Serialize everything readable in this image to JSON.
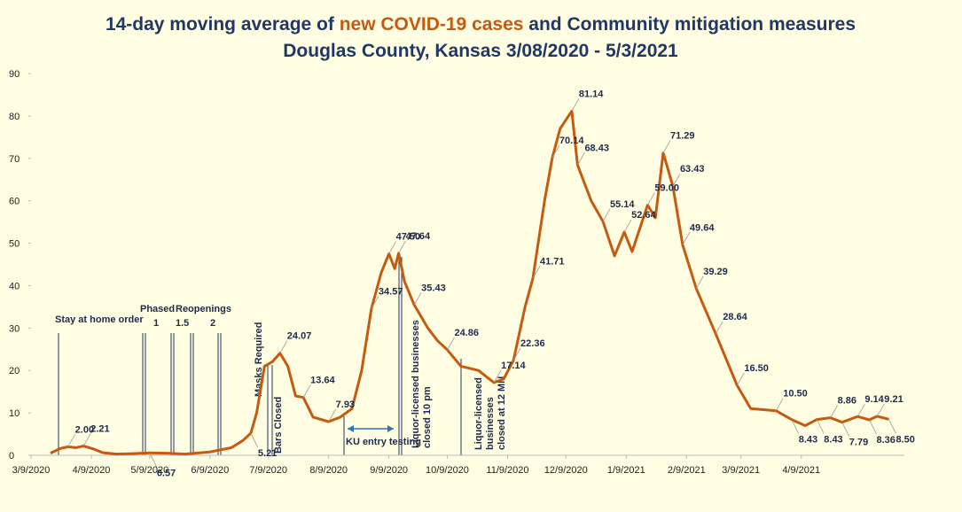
{
  "chart_data": {
    "type": "line",
    "title": [
      "14-day moving average of ",
      "new COVID-19 cases",
      " and Community mitigation measures"
    ],
    "subtitle": "Douglas County, Kansas 3/08/2020 - 5/3/2021",
    "color": "#c55a11",
    "xlim": [
      "2020-03-09",
      "2021-06-01"
    ],
    "xticks": [
      {
        "value": "2020-03-09",
        "label": "3/9/2020"
      },
      {
        "value": "2020-04-09",
        "label": "4/9/2020"
      },
      {
        "value": "2020-05-09",
        "label": "5/9/2020"
      },
      {
        "value": "2020-06-09",
        "label": "6/9/2020"
      },
      {
        "value": "2020-07-09",
        "label": "7/9/2020"
      },
      {
        "value": "2020-08-09",
        "label": "8/9/2020"
      },
      {
        "value": "2020-09-09",
        "label": "9/9/2020"
      },
      {
        "value": "2020-10-09",
        "label": "10/9/2020"
      },
      {
        "value": "2020-11-09",
        "label": "11/9/2020"
      },
      {
        "value": "2020-12-09",
        "label": "12/9/2020"
      },
      {
        "value": "2021-01-09",
        "label": "1/9/2021"
      },
      {
        "value": "2021-02-09",
        "label": "2/9/2021"
      },
      {
        "value": "2021-03-09",
        "label": "3/9/2021"
      },
      {
        "value": "2021-04-09",
        "label": "4/9/2021"
      }
    ],
    "ylim": [
      0,
      90
    ],
    "yticks": [
      0,
      10,
      20,
      30,
      40,
      50,
      60,
      70,
      80,
      90
    ],
    "x": [
      "2020-03-19",
      "2020-03-24",
      "2020-03-28",
      "2020-04-01",
      "2020-04-05",
      "2020-04-10",
      "2020-04-15",
      "2020-04-22",
      "2020-04-30",
      "2020-05-09",
      "2020-05-18",
      "2020-05-27",
      "2020-06-09",
      "2020-06-20",
      "2020-06-26",
      "2020-06-30",
      "2020-07-03",
      "2020-07-07",
      "2020-07-11",
      "2020-07-15",
      "2020-07-19",
      "2020-07-23",
      "2020-07-27",
      "2020-08-01",
      "2020-08-09",
      "2020-08-15",
      "2020-08-21",
      "2020-08-26",
      "2020-08-31",
      "2020-09-05",
      "2020-09-09",
      "2020-09-12",
      "2020-09-14",
      "2020-09-17",
      "2020-09-22",
      "2020-09-29",
      "2020-10-04",
      "2020-10-09",
      "2020-10-16",
      "2020-10-25",
      "2020-11-02",
      "2020-11-07",
      "2020-11-12",
      "2020-11-18",
      "2020-11-22",
      "2020-11-28",
      "2020-12-02",
      "2020-12-06",
      "2020-12-12",
      "2020-12-15",
      "2020-12-22",
      "2020-12-28",
      "2021-01-03",
      "2021-01-08",
      "2021-01-12",
      "2021-01-20",
      "2021-01-24",
      "2021-01-28",
      "2021-02-02",
      "2021-02-07",
      "2021-02-14",
      "2021-02-24",
      "2021-03-07",
      "2021-03-14",
      "2021-03-27",
      "2021-04-04",
      "2021-04-11",
      "2021-04-17",
      "2021-04-24",
      "2021-04-30",
      "2021-05-08",
      "2021-05-14",
      "2021-05-18",
      "2021-05-24"
    ],
    "values": [
      0.5,
      1.6,
      2.0,
      1.8,
      2.21,
      1.5,
      0.6,
      0.3,
      0.4,
      0.57,
      0.5,
      0.3,
      0.8,
      1.8,
      3.5,
      5.21,
      10,
      21,
      22,
      24.07,
      21,
      14,
      13.64,
      9,
      7.93,
      9,
      11,
      20,
      34.57,
      43,
      47.5,
      44,
      47.64,
      41,
      35.43,
      30,
      27,
      24.86,
      21,
      20,
      17.14,
      18,
      22.36,
      35,
      41.71,
      60,
      70.14,
      77,
      81.14,
      68.43,
      60,
      55.14,
      47,
      52.64,
      48,
      59.0,
      56,
      71.29,
      63.43,
      49.64,
      39.29,
      28.64,
      16.5,
      11,
      10.5,
      8.43,
      7,
      8.43,
      8.86,
      7.79,
      9.14,
      8.36,
      9.21,
      8.5
    ],
    "value_labels": [
      null,
      null,
      "2.00",
      null,
      "2.21",
      null,
      null,
      null,
      null,
      "0.57",
      null,
      null,
      null,
      null,
      null,
      "5.21",
      null,
      null,
      null,
      "24.07",
      null,
      null,
      "13.64",
      null,
      "7.93",
      null,
      null,
      null,
      "34.57",
      null,
      "47.50",
      null,
      "47.64",
      null,
      "35.43",
      null,
      null,
      "24.86",
      null,
      null,
      "17.14",
      null,
      "22.36",
      null,
      "41.71",
      null,
      "70.14",
      null,
      "81.14",
      "68.43",
      null,
      "55.14",
      null,
      "52.64",
      null,
      "59.00",
      null,
      "71.29",
      "63.43",
      "49.64",
      "39.29",
      "28.64",
      "16.50",
      null,
      "10.50",
      "8.43",
      null,
      "8.43",
      "8.86",
      "7.79",
      "9.14",
      "8.36",
      "9.21",
      "8.50"
    ],
    "annotations": {
      "stay_at_home": "Stay at home  order",
      "phased": "Phased",
      "reopenings": "Reopenings",
      "phase_labels": [
        "1",
        "1.5",
        "2"
      ],
      "masks": "Masks Required",
      "bars": "Bars Closed",
      "ku_testing": "KU entry testing",
      "liquor_10pm": [
        "Liquor-licensed businesses",
        "closed 10 pm"
      ],
      "liquor_12mn": [
        "Liquor-licensed",
        "businesses",
        "closed at 12 MN"
      ]
    }
  }
}
